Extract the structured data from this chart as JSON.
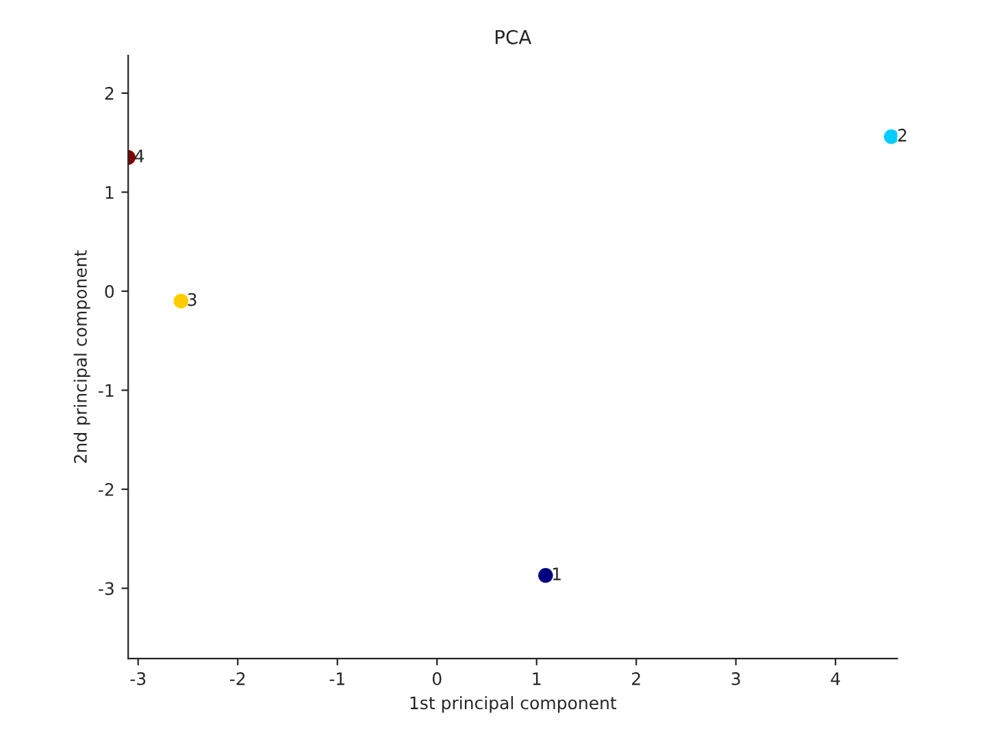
{
  "chart_data": {
    "type": "scatter",
    "title": "PCA",
    "xlabel": "1st principal component",
    "ylabel": "2nd principal component",
    "x": [
      1.09,
      4.56,
      -2.57,
      -3.1
    ],
    "values": [
      -2.87,
      1.56,
      -0.1,
      1.35
    ],
    "colors": [
      "#000080",
      "#00ccff",
      "#ffcc00",
      "#800000"
    ],
    "annotations": [
      {
        "text": "1",
        "x": 1.09,
        "y": -2.87
      },
      {
        "text": "2",
        "x": 4.56,
        "y": 1.56
      },
      {
        "text": "3",
        "x": -2.57,
        "y": -0.1
      },
      {
        "text": "4",
        "x": -3.1,
        "y": 1.35
      }
    ],
    "xlim": [
      -3.1,
      4.62
    ],
    "ylim": [
      -3.71,
      2.38
    ],
    "xticks": [
      -3,
      -2,
      -1,
      0,
      1,
      2,
      3,
      4
    ],
    "yticks": [
      -3,
      -2,
      -1,
      0,
      1,
      2
    ],
    "marker": "circle",
    "grid": false,
    "legend": false
  }
}
